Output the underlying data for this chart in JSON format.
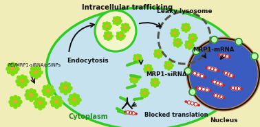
{
  "bg_yellow": "#f0edb8",
  "bg_cyan": "#c5e2ee",
  "bg_blue": "#3a5bbf",
  "cell_border_color": "#2ecc22",
  "nucleus_fill": "#3a5bbf",
  "nucleus_border": "#111111",
  "nucleus_inner": "#c8824a",
  "title": "Intracellular trafficking",
  "label_endocytosis": "Endocytosis",
  "label_cytoplasm": "Cytoplasm",
  "label_nucleus": "Nucleus",
  "label_peinp": "PEI/MRP1-siRNA/pSiNPs",
  "label_mrp1sirna": "MRP1-siRNA",
  "label_blocked": "Blocked translation",
  "label_leaky": "Leaky lysosome",
  "label_mrp1mrna": "MRP1-mRNA",
  "np_green": "#7ddd10",
  "np_orange": "#f5a030",
  "mrna_red": "#cc2222",
  "sirna_green": "#44cc22",
  "lyso_dash": "#555544",
  "endosome_fill": "#f5f5cc",
  "endosome_border": "#2ecc22",
  "arrow_color": "#111111"
}
